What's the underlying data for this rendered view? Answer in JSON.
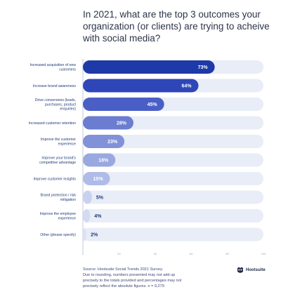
{
  "chart_data": {
    "type": "bar",
    "orientation": "horizontal",
    "title": "In 2021, what are the top 3 outcomes your organization (or clients) are trying to acheive with social media?",
    "categories": [
      "Increased acquisition of new customers",
      "Increase brand awareness",
      "Drive conversions (leads, purchases, product enquiries)",
      "Increased customer retention",
      "Improve the customer experience",
      "Improve your brand's competitive advantage",
      "Improve customer insights",
      "Brand protection / risk mitigation",
      "Improve the employee experience",
      "Other (please specify)"
    ],
    "values": [
      73,
      64,
      45,
      28,
      23,
      18,
      15,
      5,
      4,
      2
    ],
    "value_labels": [
      "73%",
      "64%",
      "45%",
      "28%",
      "23%",
      "18%",
      "15%",
      "5%",
      "4%",
      "2%"
    ],
    "xlim": [
      0,
      100
    ],
    "x_ticks": [
      "0",
      "20",
      "40",
      "60",
      "80",
      "100"
    ],
    "grid": false,
    "colors": [
      "#1e3aa8",
      "#2f46b8",
      "#4a5fc6",
      "#6a7dd1",
      "#8292d8",
      "#9aa8e0",
      "#b0bce8",
      "#c8d1ee",
      "#d3dbf2",
      "#dde3f5"
    ],
    "track_color": "#e8edf7",
    "value_label_colors": [
      "#ffffff",
      "#ffffff",
      "#ffffff",
      "#ffffff",
      "#ffffff",
      "#ffffff",
      "#ffffff",
      "#1f3a7a",
      "#1f3a7a",
      "#1f3a7a"
    ]
  },
  "source": {
    "lines": [
      "Source: Hootsuite Social Trends 2021 Survey.",
      "Due to rounding, numbers presented may not add up",
      "precisely to the totals provided and percentages may not",
      "precisely reflect the absolute figures. n = 9,279"
    ]
  },
  "brand": {
    "name": "Hootsuite",
    "icon": "hootsuite-owl-icon",
    "color": "#1f2a44"
  }
}
